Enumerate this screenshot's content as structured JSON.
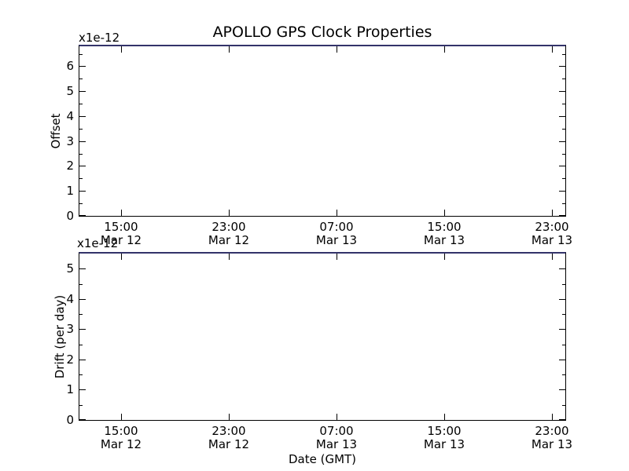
{
  "figure": {
    "title": "APOLLO GPS Clock Properties",
    "xlabel": "Date (GMT)",
    "background": "#ffffff"
  },
  "colors": {
    "axis": "#000000",
    "text": "#000000",
    "top_edge_line": "#33336a",
    "background": "#ffffff"
  },
  "chart_data": [
    {
      "type": "line",
      "name": "offset",
      "ylabel": "Offset",
      "offset_text": "x1e-12",
      "ylim": [
        0,
        6.8
      ],
      "yticks": [
        0,
        1,
        2,
        3,
        4,
        5,
        6
      ],
      "ytick_labels": [
        "0",
        "1",
        "2",
        "3",
        "4",
        "5",
        "6"
      ],
      "yminor_step": 0.5,
      "xlim_hours_from_mar12_0000": [
        11.9,
        48.0
      ],
      "xticks_hours_from_mar12_0000": [
        15,
        23,
        31,
        39,
        47
      ],
      "xtick_labels": [
        [
          "15:00",
          "Mar 12"
        ],
        [
          "23:00",
          "Mar 12"
        ],
        [
          "07:00",
          "Mar 13"
        ],
        [
          "15:00",
          "Mar 13"
        ],
        [
          "23:00",
          "Mar 13"
        ]
      ],
      "grid": false,
      "legend": null,
      "series": []
    },
    {
      "type": "line",
      "name": "drift",
      "ylabel": "Drift (per day)",
      "xlabel": "Date (GMT)",
      "offset_text": "x1e-12",
      "ylim": [
        0,
        5.5
      ],
      "yticks": [
        0,
        1,
        2,
        3,
        4,
        5
      ],
      "ytick_labels": [
        "0",
        "1",
        "2",
        "3",
        "4",
        "5"
      ],
      "yminor_step": 0.5,
      "xlim_hours_from_mar12_0000": [
        11.9,
        48.0
      ],
      "xticks_hours_from_mar12_0000": [
        15,
        23,
        31,
        39,
        47
      ],
      "xtick_labels": [
        [
          "15:00",
          "Mar 12"
        ],
        [
          "23:00",
          "Mar 12"
        ],
        [
          "07:00",
          "Mar 13"
        ],
        [
          "15:00",
          "Mar 13"
        ],
        [
          "23:00",
          "Mar 13"
        ]
      ],
      "grid": false,
      "legend": null,
      "series": []
    }
  ]
}
